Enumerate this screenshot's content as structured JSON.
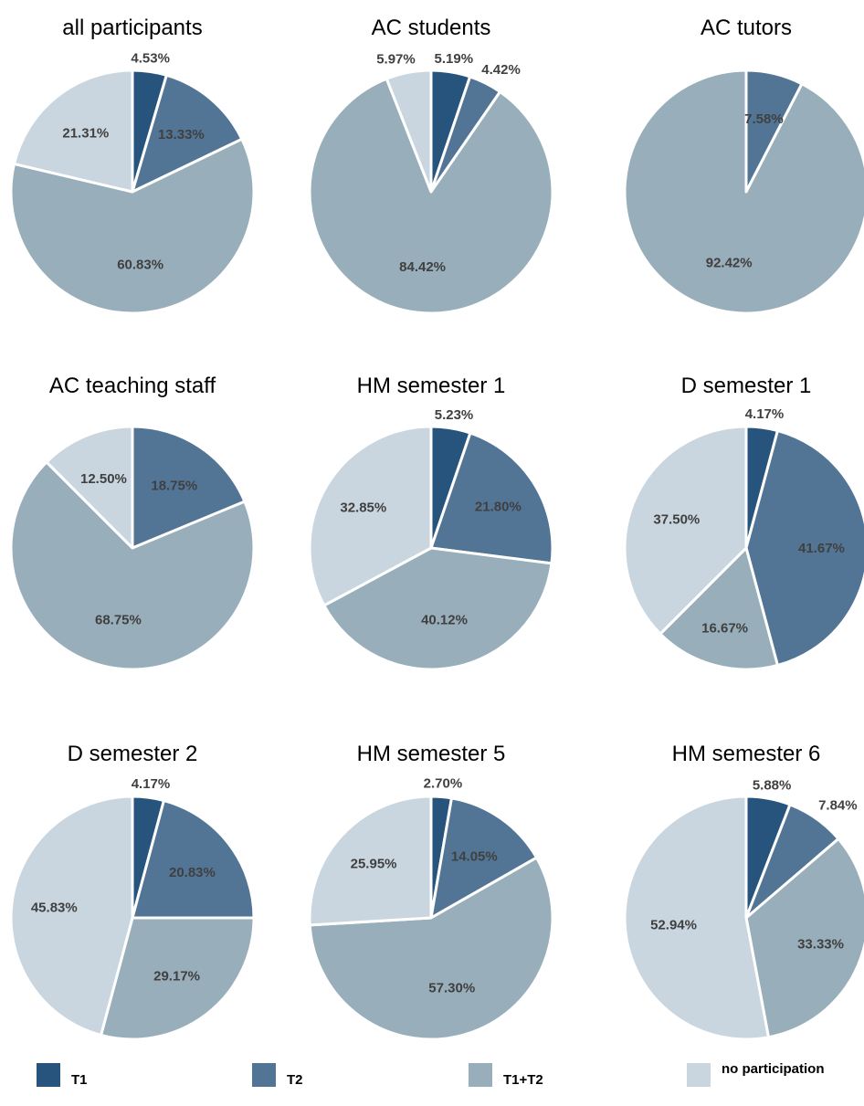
{
  "legend": [
    {
      "label": "T1",
      "color": "#26547c"
    },
    {
      "label": "T2",
      "color": "#527596"
    },
    {
      "label": "T1+T2",
      "color": "#98aeba"
    },
    {
      "label": "no participation",
      "color": "#c9d6df"
    }
  ],
  "chart_data": [
    {
      "type": "pie",
      "title": "all participants",
      "slices": [
        {
          "category": "T1",
          "value": 4.53,
          "label": "4.53%"
        },
        {
          "category": "T2",
          "value": 13.33,
          "label": "13.33%"
        },
        {
          "category": "T1+T2",
          "value": 60.83,
          "label": "60.83%"
        },
        {
          "category": "no participation",
          "value": 21.31,
          "label": "21.31%"
        }
      ]
    },
    {
      "type": "pie",
      "title": "AC students",
      "slices": [
        {
          "category": "T1",
          "value": 5.19,
          "label": "5.19%"
        },
        {
          "category": "T2",
          "value": 4.42,
          "label": "4.42%"
        },
        {
          "category": "T1+T2",
          "value": 84.42,
          "label": "84.42%"
        },
        {
          "category": "no participation",
          "value": 5.97,
          "label": "5.97%"
        }
      ]
    },
    {
      "type": "pie",
      "title": "AC tutors",
      "slices": [
        {
          "category": "T2",
          "value": 7.58,
          "label": "7.58%"
        },
        {
          "category": "T1+T2",
          "value": 92.42,
          "label": "92.42%"
        }
      ]
    },
    {
      "type": "pie",
      "title": "AC teaching staff",
      "slices": [
        {
          "category": "T2",
          "value": 18.75,
          "label": "18.75%"
        },
        {
          "category": "T1+T2",
          "value": 68.75,
          "label": "68.75%"
        },
        {
          "category": "no participation",
          "value": 12.5,
          "label": "12.50%"
        }
      ]
    },
    {
      "type": "pie",
      "title": "HM semester 1",
      "slices": [
        {
          "category": "T1",
          "value": 5.23,
          "label": "5.23%"
        },
        {
          "category": "T2",
          "value": 21.8,
          "label": "21.80%"
        },
        {
          "category": "T1+T2",
          "value": 40.12,
          "label": "40.12%"
        },
        {
          "category": "no participation",
          "value": 32.85,
          "label": "32.85%"
        }
      ]
    },
    {
      "type": "pie",
      "title": "D semester 1",
      "slices": [
        {
          "category": "T1",
          "value": 4.17,
          "label": "4.17%"
        },
        {
          "category": "T2",
          "value": 41.67,
          "label": "41.67%"
        },
        {
          "category": "T1+T2",
          "value": 16.67,
          "label": "16.67%"
        },
        {
          "category": "no participation",
          "value": 37.5,
          "label": "37.50%"
        }
      ]
    },
    {
      "type": "pie",
      "title": "D semester 2",
      "slices": [
        {
          "category": "T1",
          "value": 4.17,
          "label": "4.17%"
        },
        {
          "category": "T2",
          "value": 20.83,
          "label": "20.83%"
        },
        {
          "category": "T1+T2",
          "value": 29.17,
          "label": "29.17%"
        },
        {
          "category": "no participation",
          "value": 45.83,
          "label": "45.83%"
        }
      ]
    },
    {
      "type": "pie",
      "title": "HM semester 5",
      "slices": [
        {
          "category": "T1",
          "value": 2.7,
          "label": "2.70%"
        },
        {
          "category": "T2",
          "value": 14.05,
          "label": "14.05%"
        },
        {
          "category": "T1+T2",
          "value": 57.3,
          "label": "57.30%"
        },
        {
          "category": "no participation",
          "value": 25.95,
          "label": "25.95%"
        }
      ]
    },
    {
      "type": "pie",
      "title": "HM semester 6",
      "slices": [
        {
          "category": "T1",
          "value": 5.88,
          "label": "5.88%"
        },
        {
          "category": "T2",
          "value": 7.84,
          "label": "7.84%"
        },
        {
          "category": "T1+T2",
          "value": 33.33,
          "label": "33.33%"
        },
        {
          "category": "no participation",
          "value": 52.94,
          "label": "52.94%"
        }
      ]
    }
  ]
}
